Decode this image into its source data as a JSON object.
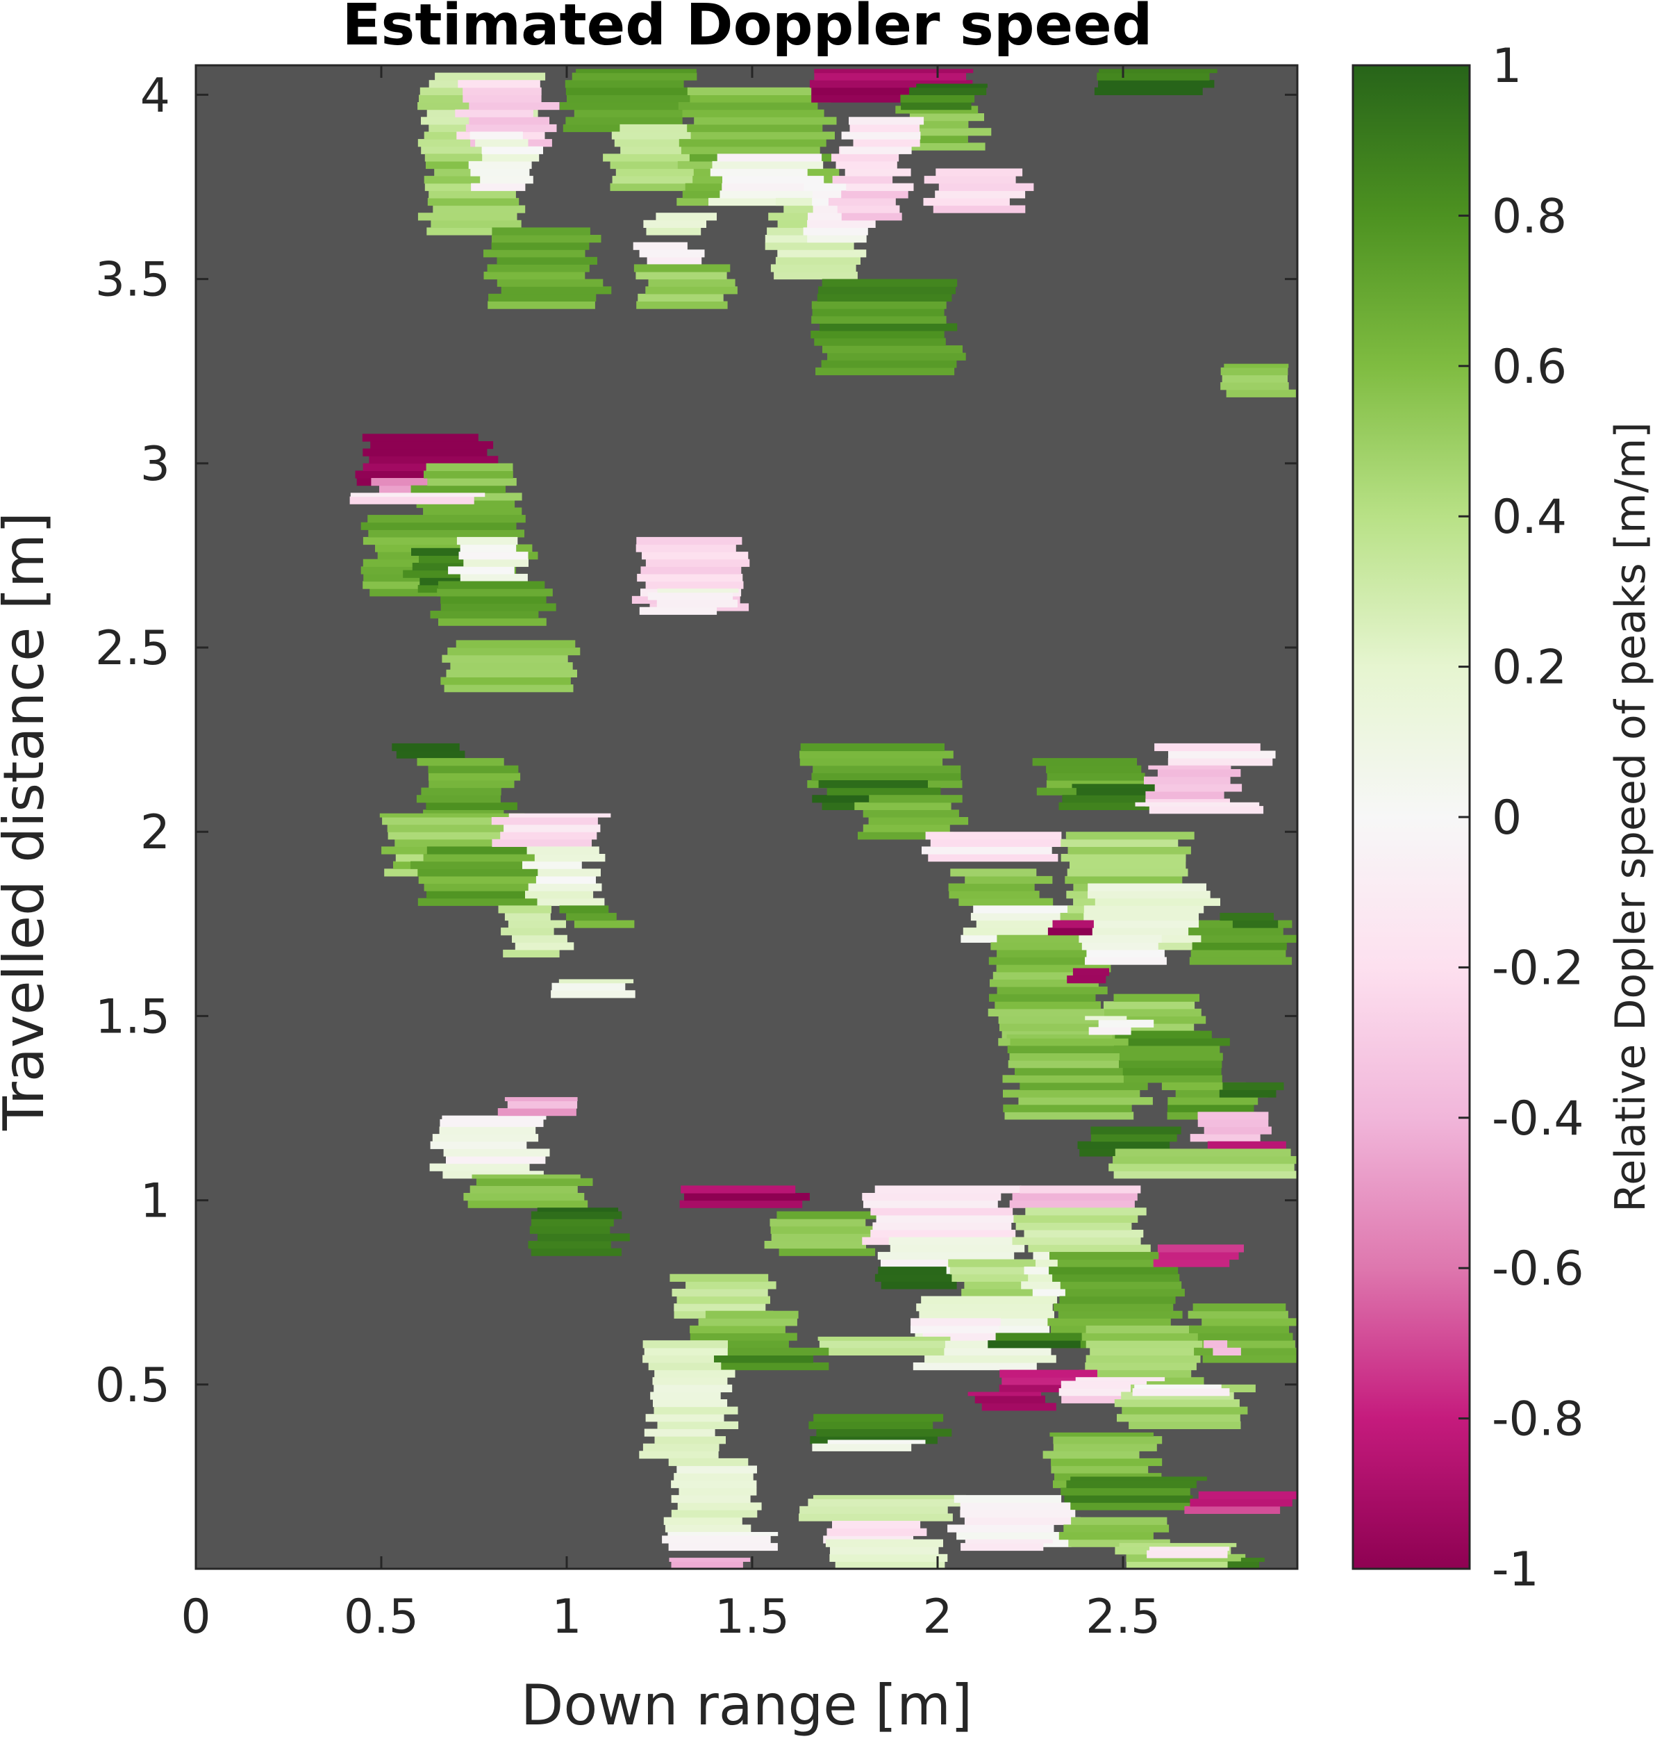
{
  "chart_data": {
    "type": "heatmap",
    "title": "Estimated Doppler speed",
    "xlabel": "Down range [m]",
    "ylabel": "Travelled distance [m]",
    "colorbar_label": "Relative Dopler speed of peaks [m/m]",
    "xlim": [
      0,
      2.97
    ],
    "ylim": [
      0,
      4.08
    ],
    "x_ticks": [
      0,
      0.5,
      1,
      1.5,
      2,
      2.5
    ],
    "x_tick_labels": [
      "0",
      "0.5",
      "1",
      "1.5",
      "2",
      "2.5"
    ],
    "y_ticks": [
      0.5,
      1,
      1.5,
      2,
      2.5,
      3,
      3.5,
      4
    ],
    "y_tick_labels": [
      "0.5",
      "1",
      "1.5",
      "2",
      "2.5",
      "3",
      "3.5",
      "4"
    ],
    "clim": [
      -1,
      1
    ],
    "colorbar_ticks": [
      1,
      0.8,
      0.6,
      0.4,
      0.2,
      0,
      -0.2,
      -0.4,
      -0.6,
      -0.8,
      -1
    ],
    "colorbar_tick_labels": [
      "1",
      "0.8",
      "0.6",
      "0.4",
      "0.2",
      "0",
      "-0.2",
      "-0.4",
      "-0.6",
      "-0.8",
      "-1"
    ],
    "colormap": "PiYG",
    "background_color": "#545454",
    "grid": false,
    "clusters": [
      {
        "x0": 0.62,
        "x1": 0.92,
        "y0": 3.82,
        "y1": 4.06,
        "v": 0.35
      },
      {
        "x0": 0.62,
        "x1": 0.87,
        "y0": 3.62,
        "y1": 3.84,
        "v": 0.5
      },
      {
        "x0": 0.8,
        "x1": 1.08,
        "y0": 3.42,
        "y1": 3.64,
        "v": 0.65
      },
      {
        "x0": 0.72,
        "x1": 0.95,
        "y0": 3.86,
        "y1": 4.04,
        "v": -0.25
      },
      {
        "x0": 0.76,
        "x1": 0.92,
        "y0": 3.74,
        "y1": 3.9,
        "v": 0.05
      },
      {
        "x0": 1.0,
        "x1": 1.32,
        "y0": 3.9,
        "y1": 4.07,
        "v": 0.7
      },
      {
        "x0": 1.12,
        "x1": 1.48,
        "y0": 3.74,
        "y1": 3.92,
        "v": 0.4
      },
      {
        "x0": 1.22,
        "x1": 1.38,
        "y0": 3.62,
        "y1": 3.68,
        "v": 0.2
      },
      {
        "x0": 1.2,
        "x1": 1.36,
        "y0": 3.54,
        "y1": 3.6,
        "v": -0.05
      },
      {
        "x0": 1.2,
        "x1": 1.45,
        "y0": 3.42,
        "y1": 3.54,
        "v": 0.55
      },
      {
        "x0": 1.32,
        "x1": 1.7,
        "y0": 3.7,
        "y1": 4.02,
        "v": 0.6
      },
      {
        "x0": 1.4,
        "x1": 1.68,
        "y0": 3.7,
        "y1": 3.84,
        "v": 0.05
      },
      {
        "x0": 1.56,
        "x1": 1.8,
        "y0": 3.5,
        "y1": 3.72,
        "v": 0.3
      },
      {
        "x0": 1.68,
        "x1": 2.05,
        "y0": 3.24,
        "y1": 3.5,
        "v": 0.8
      },
      {
        "x0": 1.65,
        "x1": 1.82,
        "y0": 3.6,
        "y1": 3.76,
        "v": 0.0
      },
      {
        "x0": 1.73,
        "x1": 1.9,
        "y0": 3.66,
        "y1": 3.86,
        "v": -0.25
      },
      {
        "x0": 1.68,
        "x1": 2.1,
        "y0": 3.98,
        "y1": 4.07,
        "v": -0.95
      },
      {
        "x0": 1.9,
        "x1": 2.12,
        "y0": 3.85,
        "y1": 3.97,
        "v": 0.6
      },
      {
        "x0": 1.92,
        "x1": 2.12,
        "y0": 3.96,
        "y1": 4.03,
        "v": 0.9
      },
      {
        "x0": 1.98,
        "x1": 2.22,
        "y0": 3.68,
        "y1": 3.8,
        "v": -0.2
      },
      {
        "x0": 1.75,
        "x1": 1.95,
        "y0": 3.84,
        "y1": 3.94,
        "v": -0.15
      },
      {
        "x0": 2.42,
        "x1": 2.72,
        "y0": 4.0,
        "y1": 4.07,
        "v": 0.95
      },
      {
        "x0": 2.78,
        "x1": 2.97,
        "y0": 3.18,
        "y1": 3.27,
        "v": 0.55
      },
      {
        "x0": 0.45,
        "x1": 0.78,
        "y0": 2.94,
        "y1": 3.08,
        "v": -0.95
      },
      {
        "x0": 0.48,
        "x1": 0.7,
        "y0": 2.9,
        "y1": 2.96,
        "v": -0.55
      },
      {
        "x0": 0.6,
        "x1": 0.85,
        "y0": 2.86,
        "y1": 3.0,
        "v": 0.6
      },
      {
        "x0": 0.4,
        "x1": 0.75,
        "y0": 2.89,
        "y1": 2.92,
        "v": -0.15
      },
      {
        "x0": 0.47,
        "x1": 0.9,
        "y0": 2.64,
        "y1": 2.86,
        "v": 0.65
      },
      {
        "x0": 0.58,
        "x1": 0.8,
        "y0": 2.65,
        "y1": 2.77,
        "v": 0.9
      },
      {
        "x0": 0.7,
        "x1": 0.87,
        "y0": 2.68,
        "y1": 2.8,
        "v": 0.05
      },
      {
        "x0": 0.65,
        "x1": 0.95,
        "y0": 2.56,
        "y1": 2.68,
        "v": 0.7
      },
      {
        "x0": 0.68,
        "x1": 1.02,
        "y0": 2.38,
        "y1": 2.52,
        "v": 0.5
      },
      {
        "x0": 1.2,
        "x1": 1.48,
        "y0": 2.6,
        "y1": 2.8,
        "v": -0.2
      },
      {
        "x0": 1.22,
        "x1": 1.44,
        "y0": 2.59,
        "y1": 2.66,
        "v": 0.0
      },
      {
        "x0": 0.52,
        "x1": 0.72,
        "y0": 2.2,
        "y1": 2.24,
        "v": 0.95
      },
      {
        "x0": 0.62,
        "x1": 0.85,
        "y0": 1.98,
        "y1": 2.2,
        "v": 0.7
      },
      {
        "x0": 0.52,
        "x1": 0.92,
        "y0": 1.88,
        "y1": 2.05,
        "v": 0.5
      },
      {
        "x0": 0.6,
        "x1": 0.95,
        "y0": 1.8,
        "y1": 1.96,
        "v": 0.7
      },
      {
        "x0": 0.82,
        "x1": 1.1,
        "y0": 1.96,
        "y1": 2.05,
        "v": -0.2
      },
      {
        "x0": 0.9,
        "x1": 1.08,
        "y0": 1.8,
        "y1": 1.96,
        "v": 0.1
      },
      {
        "x0": 0.84,
        "x1": 0.98,
        "y0": 1.66,
        "y1": 1.8,
        "v": 0.3
      },
      {
        "x0": 1.0,
        "x1": 1.15,
        "y0": 1.74,
        "y1": 1.8,
        "v": 0.7
      },
      {
        "x0": 0.97,
        "x1": 1.18,
        "y0": 1.55,
        "y1": 1.6,
        "v": 0.15
      },
      {
        "x0": 0.65,
        "x1": 0.92,
        "y0": 1.06,
        "y1": 1.23,
        "v": 0.05
      },
      {
        "x0": 0.82,
        "x1": 1.02,
        "y0": 1.23,
        "y1": 1.28,
        "v": -0.45
      },
      {
        "x0": 0.74,
        "x1": 1.05,
        "y0": 0.98,
        "y1": 1.07,
        "v": 0.6
      },
      {
        "x0": 0.92,
        "x1": 1.15,
        "y0": 0.85,
        "y1": 0.98,
        "v": 0.95
      },
      {
        "x0": 1.3,
        "x1": 1.62,
        "y0": 0.98,
        "y1": 1.04,
        "v": -0.95
      },
      {
        "x0": 1.65,
        "x1": 2.05,
        "y0": 2.12,
        "y1": 2.24,
        "v": 0.7
      },
      {
        "x0": 1.68,
        "x1": 1.98,
        "y0": 2.06,
        "y1": 2.14,
        "v": 0.95
      },
      {
        "x0": 1.8,
        "x1": 2.05,
        "y0": 1.98,
        "y1": 2.1,
        "v": 0.6
      },
      {
        "x0": 2.28,
        "x1": 2.55,
        "y0": 2.1,
        "y1": 2.2,
        "v": 0.7
      },
      {
        "x0": 2.35,
        "x1": 2.62,
        "y0": 2.06,
        "y1": 2.13,
        "v": 0.95
      },
      {
        "x0": 2.6,
        "x1": 2.88,
        "y0": 2.18,
        "y1": 2.24,
        "v": -0.15
      },
      {
        "x0": 2.58,
        "x1": 2.8,
        "y0": 2.07,
        "y1": 2.18,
        "v": -0.3
      },
      {
        "x0": 2.55,
        "x1": 2.87,
        "y0": 2.05,
        "y1": 2.08,
        "v": -0.1
      },
      {
        "x0": 1.98,
        "x1": 2.35,
        "y0": 1.92,
        "y1": 2.0,
        "v": -0.15
      },
      {
        "x0": 2.05,
        "x1": 2.3,
        "y0": 1.8,
        "y1": 1.9,
        "v": 0.55
      },
      {
        "x0": 2.08,
        "x1": 2.4,
        "y0": 1.7,
        "y1": 1.8,
        "v": 0.1
      },
      {
        "x0": 2.15,
        "x1": 2.45,
        "y0": 1.42,
        "y1": 1.72,
        "v": 0.6
      },
      {
        "x0": 2.2,
        "x1": 2.55,
        "y0": 1.22,
        "y1": 1.45,
        "v": 0.6
      },
      {
        "x0": 2.35,
        "x1": 2.68,
        "y0": 1.76,
        "y1": 2.0,
        "v": 0.45
      },
      {
        "x0": 2.4,
        "x1": 2.72,
        "y0": 1.68,
        "y1": 1.86,
        "v": 0.2
      },
      {
        "x0": 2.4,
        "x1": 2.62,
        "y0": 1.64,
        "y1": 1.72,
        "v": 0.0
      },
      {
        "x0": 2.3,
        "x1": 2.4,
        "y0": 1.72,
        "y1": 1.76,
        "v": -0.95
      },
      {
        "x0": 2.36,
        "x1": 2.47,
        "y0": 1.59,
        "y1": 1.63,
        "v": -0.95
      },
      {
        "x0": 2.7,
        "x1": 2.97,
        "y0": 1.64,
        "y1": 1.76,
        "v": 0.7
      },
      {
        "x0": 2.78,
        "x1": 2.92,
        "y0": 1.74,
        "y1": 1.78,
        "v": 0.9
      },
      {
        "x0": 2.45,
        "x1": 2.7,
        "y0": 1.44,
        "y1": 1.56,
        "v": 0.55
      },
      {
        "x0": 2.5,
        "x1": 2.78,
        "y0": 1.32,
        "y1": 1.46,
        "v": 0.75
      },
      {
        "x0": 2.42,
        "x1": 2.55,
        "y0": 1.45,
        "y1": 1.5,
        "v": 0.05
      },
      {
        "x0": 2.62,
        "x1": 2.85,
        "y0": 1.22,
        "y1": 1.32,
        "v": 0.7
      },
      {
        "x0": 2.75,
        "x1": 2.9,
        "y0": 1.28,
        "y1": 1.32,
        "v": 0.95
      },
      {
        "x0": 2.7,
        "x1": 2.88,
        "y0": 1.16,
        "y1": 1.24,
        "v": -0.4
      },
      {
        "x0": 2.72,
        "x1": 2.92,
        "y0": 1.1,
        "y1": 1.16,
        "v": -0.9
      },
      {
        "x0": 2.4,
        "x1": 2.65,
        "y0": 1.12,
        "y1": 1.2,
        "v": 0.9
      },
      {
        "x0": 2.48,
        "x1": 2.97,
        "y0": 1.06,
        "y1": 1.14,
        "v": 0.4
      },
      {
        "x0": 1.55,
        "x1": 1.82,
        "y0": 0.85,
        "y1": 0.97,
        "v": 0.6
      },
      {
        "x0": 1.82,
        "x1": 2.2,
        "y0": 0.88,
        "y1": 1.04,
        "v": -0.15
      },
      {
        "x0": 1.85,
        "x1": 2.22,
        "y0": 0.78,
        "y1": 0.9,
        "v": 0.05
      },
      {
        "x0": 1.85,
        "x1": 2.05,
        "y0": 0.76,
        "y1": 0.82,
        "v": 0.9
      },
      {
        "x0": 2.05,
        "x1": 2.3,
        "y0": 0.72,
        "y1": 0.84,
        "v": 0.4
      },
      {
        "x0": 2.2,
        "x1": 2.52,
        "y0": 0.98,
        "y1": 1.04,
        "v": -0.3
      },
      {
        "x0": 2.22,
        "x1": 2.55,
        "y0": 0.86,
        "y1": 0.98,
        "v": 0.3
      },
      {
        "x0": 2.25,
        "x1": 2.58,
        "y0": 0.74,
        "y1": 0.86,
        "v": 0.1
      },
      {
        "x0": 1.95,
        "x1": 2.3,
        "y0": 0.54,
        "y1": 0.74,
        "v": 0.1
      },
      {
        "x0": 1.95,
        "x1": 2.2,
        "y0": 0.62,
        "y1": 0.68,
        "v": -0.1
      },
      {
        "x0": 2.32,
        "x1": 2.65,
        "y0": 0.6,
        "y1": 0.86,
        "v": 0.7
      },
      {
        "x0": 2.4,
        "x1": 2.72,
        "y0": 0.5,
        "y1": 0.66,
        "v": 0.5
      },
      {
        "x0": 2.58,
        "x1": 2.8,
        "y0": 0.82,
        "y1": 0.88,
        "v": -0.8
      },
      {
        "x0": 2.7,
        "x1": 2.97,
        "y0": 0.56,
        "y1": 0.72,
        "v": 0.6
      },
      {
        "x0": 2.72,
        "x1": 2.8,
        "y0": 0.58,
        "y1": 0.62,
        "v": -0.3
      },
      {
        "x0": 2.15,
        "x1": 2.4,
        "y0": 0.6,
        "y1": 0.64,
        "v": 0.95
      },
      {
        "x0": 1.7,
        "x1": 2.05,
        "y0": 0.58,
        "y1": 0.63,
        "v": 0.3
      },
      {
        "x0": 1.3,
        "x1": 1.55,
        "y0": 0.68,
        "y1": 0.8,
        "v": 0.4
      },
      {
        "x0": 1.35,
        "x1": 1.62,
        "y0": 0.58,
        "y1": 0.7,
        "v": 0.6
      },
      {
        "x0": 1.4,
        "x1": 1.7,
        "y0": 0.54,
        "y1": 0.6,
        "v": 0.8
      },
      {
        "x0": 1.22,
        "x1": 1.43,
        "y0": 0.3,
        "y1": 0.62,
        "v": 0.2
      },
      {
        "x0": 1.28,
        "x1": 1.5,
        "y0": 0.08,
        "y1": 0.3,
        "v": 0.15
      },
      {
        "x0": 1.26,
        "x1": 1.55,
        "y0": 0.05,
        "y1": 0.1,
        "v": 0.05
      },
      {
        "x0": 1.3,
        "x1": 1.5,
        "y0": 0.0,
        "y1": 0.03,
        "v": -0.4
      },
      {
        "x0": 2.15,
        "x1": 2.4,
        "y0": 0.48,
        "y1": 0.54,
        "v": -0.8
      },
      {
        "x0": 2.1,
        "x1": 2.3,
        "y0": 0.43,
        "y1": 0.48,
        "v": -0.85
      },
      {
        "x0": 2.35,
        "x1": 2.6,
        "y0": 0.45,
        "y1": 0.52,
        "v": -0.2
      },
      {
        "x0": 2.5,
        "x1": 2.82,
        "y0": 0.38,
        "y1": 0.5,
        "v": 0.45
      },
      {
        "x0": 2.55,
        "x1": 2.8,
        "y0": 0.47,
        "y1": 0.5,
        "v": 0.0
      },
      {
        "x0": 1.65,
        "x1": 2.0,
        "y0": 0.34,
        "y1": 0.42,
        "v": 0.9
      },
      {
        "x0": 1.68,
        "x1": 1.95,
        "y0": 0.32,
        "y1": 0.35,
        "v": 0.05
      },
      {
        "x0": 2.3,
        "x1": 2.58,
        "y0": 0.22,
        "y1": 0.37,
        "v": 0.6
      },
      {
        "x0": 2.35,
        "x1": 2.7,
        "y0": 0.16,
        "y1": 0.25,
        "v": 0.8
      },
      {
        "x0": 2.68,
        "x1": 2.95,
        "y0": 0.15,
        "y1": 0.21,
        "v": -0.75
      },
      {
        "x0": 1.65,
        "x1": 2.05,
        "y0": 0.13,
        "y1": 0.2,
        "v": 0.3
      },
      {
        "x0": 1.7,
        "x1": 1.95,
        "y0": 0.07,
        "y1": 0.13,
        "v": -0.2
      },
      {
        "x0": 1.72,
        "x1": 2.02,
        "y0": 0.0,
        "y1": 0.08,
        "v": 0.15
      },
      {
        "x0": 2.05,
        "x1": 2.35,
        "y0": 0.06,
        "y1": 0.2,
        "v": 0.0
      },
      {
        "x0": 2.08,
        "x1": 2.3,
        "y0": 0.05,
        "y1": 0.08,
        "v": -0.15
      },
      {
        "x0": 2.35,
        "x1": 2.62,
        "y0": 0.06,
        "y1": 0.14,
        "v": 0.5
      },
      {
        "x0": 2.5,
        "x1": 2.82,
        "y0": 0.0,
        "y1": 0.07,
        "v": 0.4
      },
      {
        "x0": 2.55,
        "x1": 2.78,
        "y0": 0.03,
        "y1": 0.06,
        "v": -0.1
      },
      {
        "x0": 2.8,
        "x1": 2.88,
        "y0": 0.0,
        "y1": 0.03,
        "v": 0.95
      }
    ]
  }
}
